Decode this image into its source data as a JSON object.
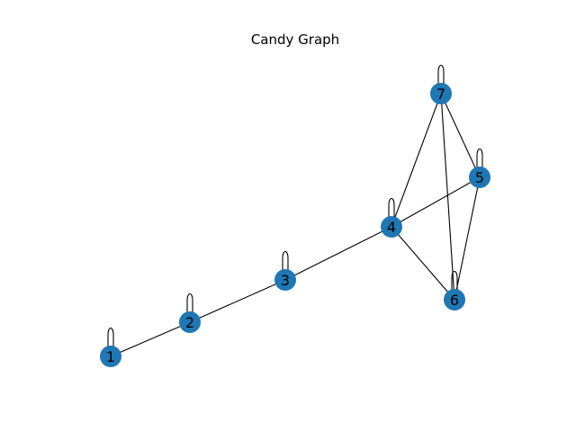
{
  "title": "Candy Graph",
  "style": {
    "node_color": "#1f77b4",
    "edge_color": "#000000",
    "background": "#ffffff"
  },
  "graph": {
    "nodes": [
      {
        "id": "1",
        "label": "1",
        "self_loop": true
      },
      {
        "id": "2",
        "label": "2",
        "self_loop": true
      },
      {
        "id": "3",
        "label": "3",
        "self_loop": true
      },
      {
        "id": "4",
        "label": "4",
        "self_loop": true
      },
      {
        "id": "5",
        "label": "5",
        "self_loop": true
      },
      {
        "id": "6",
        "label": "6",
        "self_loop": true
      },
      {
        "id": "7",
        "label": "7",
        "self_loop": true
      }
    ],
    "edges": [
      [
        "1",
        "2"
      ],
      [
        "2",
        "3"
      ],
      [
        "3",
        "4"
      ],
      [
        "4",
        "5"
      ],
      [
        "4",
        "6"
      ],
      [
        "4",
        "7"
      ],
      [
        "5",
        "6"
      ],
      [
        "5",
        "7"
      ],
      [
        "6",
        "7"
      ]
    ]
  }
}
